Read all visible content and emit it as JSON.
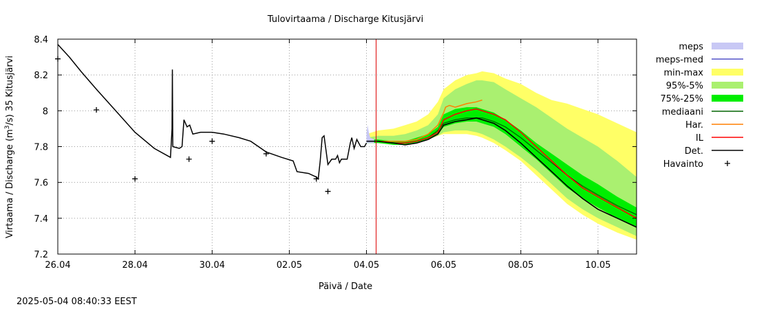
{
  "timestamp": "2025-05-04 08:40:33 EEST",
  "chart_data": {
    "type": "line",
    "title": "Tulovirtaama / Discharge  Kitusjärvi",
    "xlabel": "Päivä / Date",
    "ylabel_main": "Virtaama / Discharge (m",
    "ylabel_sup": "3",
    "ylabel_tail": "/s)  35 Kitusjärvi",
    "ylim": [
      7.2,
      8.4
    ],
    "yticks": [
      7.2,
      7.4,
      7.6,
      7.8,
      8.0,
      8.2,
      8.4
    ],
    "ytick_labels": [
      "7.2",
      "7.4",
      "7.6",
      "7.8",
      "8",
      "8.2",
      "8.4"
    ],
    "xlim_days": [
      0,
      15
    ],
    "xticks": [
      {
        "day": 0,
        "label": "26.04"
      },
      {
        "day": 2,
        "label": "28.04"
      },
      {
        "day": 4,
        "label": "30.04"
      },
      {
        "day": 6,
        "label": "02.05"
      },
      {
        "day": 8,
        "label": "04.05"
      },
      {
        "day": 10,
        "label": "06.05"
      },
      {
        "day": 12,
        "label": "08.05"
      },
      {
        "day": 14,
        "label": "10.05"
      }
    ],
    "grid": true,
    "legend_position": "right",
    "current_time_day": 8.25,
    "colors": {
      "meps": "#c8c8f5",
      "meps_med": "#5050c8",
      "min_max": "#ffff66",
      "p95_5": "#aaf070",
      "p75_25": "#00ee00",
      "mediaani": "#006400",
      "har": "#ff7f00",
      "il": "#ff0000",
      "det": "#000000",
      "havainto": "#000000",
      "now_line": "#dd0000"
    },
    "legend": [
      {
        "key": "meps",
        "label": "meps",
        "kind": "band"
      },
      {
        "key": "meps_med",
        "label": "meps-med",
        "kind": "line"
      },
      {
        "key": "min_max",
        "label": "min-max",
        "kind": "band"
      },
      {
        "key": "p95_5",
        "label": "95%-5%",
        "kind": "band"
      },
      {
        "key": "p75_25",
        "label": "75%-25%",
        "kind": "band"
      },
      {
        "key": "mediaani",
        "label": "mediaani",
        "kind": "line"
      },
      {
        "key": "har",
        "label": "Har.",
        "kind": "line"
      },
      {
        "key": "il",
        "label": "IL",
        "kind": "line"
      },
      {
        "key": "det",
        "label": "Det.",
        "kind": "line"
      },
      {
        "key": "havainto",
        "label": "Havainto",
        "kind": "marker"
      }
    ],
    "observations": [
      [
        0.0,
        8.29
      ],
      [
        1.0,
        8.005
      ],
      [
        2.0,
        7.62
      ],
      [
        3.4,
        7.73
      ],
      [
        4.0,
        7.83
      ],
      [
        5.4,
        7.76
      ],
      [
        6.7,
        7.62
      ],
      [
        7.0,
        7.55
      ]
    ],
    "det_history": [
      [
        0.0,
        8.37
      ],
      [
        0.3,
        8.3
      ],
      [
        0.6,
        8.22
      ],
      [
        1.0,
        8.12
      ],
      [
        1.5,
        8.0
      ],
      [
        2.0,
        7.88
      ],
      [
        2.5,
        7.79
      ],
      [
        2.92,
        7.74
      ],
      [
        2.96,
        7.9
      ],
      [
        2.97,
        8.23
      ],
      [
        2.98,
        7.8
      ],
      [
        3.15,
        7.79
      ],
      [
        3.22,
        7.8
      ],
      [
        3.27,
        7.95
      ],
      [
        3.35,
        7.91
      ],
      [
        3.42,
        7.92
      ],
      [
        3.5,
        7.87
      ],
      [
        3.7,
        7.88
      ],
      [
        4.0,
        7.88
      ],
      [
        4.3,
        7.87
      ],
      [
        4.7,
        7.85
      ],
      [
        5.0,
        7.83
      ],
      [
        5.4,
        7.77
      ],
      [
        5.8,
        7.74
      ],
      [
        6.1,
        7.72
      ],
      [
        6.2,
        7.66
      ],
      [
        6.5,
        7.65
      ],
      [
        6.7,
        7.63
      ],
      [
        6.75,
        7.62
      ],
      [
        6.8,
        7.72
      ],
      [
        6.85,
        7.85
      ],
      [
        6.9,
        7.86
      ],
      [
        6.95,
        7.78
      ],
      [
        7.0,
        7.7
      ],
      [
        7.1,
        7.73
      ],
      [
        7.2,
        7.73
      ],
      [
        7.25,
        7.75
      ],
      [
        7.3,
        7.71
      ],
      [
        7.35,
        7.73
      ],
      [
        7.5,
        7.73
      ],
      [
        7.58,
        7.82
      ],
      [
        7.62,
        7.85
      ],
      [
        7.68,
        7.79
      ],
      [
        7.75,
        7.84
      ],
      [
        7.85,
        7.8
      ],
      [
        7.95,
        7.8
      ],
      [
        8.0,
        7.82
      ]
    ],
    "forecast_x": [
      8.0,
      8.3,
      8.7,
      9.0,
      9.3,
      9.6,
      9.85,
      10.0,
      10.3,
      10.6,
      10.85,
      11.0,
      11.3,
      11.6,
      12.0,
      12.4,
      12.8,
      13.2,
      13.6,
      14.0,
      14.5,
      15.0
    ],
    "band_min_max": {
      "lower": [
        7.82,
        7.82,
        7.81,
        7.81,
        7.82,
        7.84,
        7.86,
        7.87,
        7.87,
        7.87,
        7.86,
        7.85,
        7.82,
        7.78,
        7.72,
        7.64,
        7.56,
        7.48,
        7.42,
        7.37,
        7.32,
        7.28
      ],
      "upper": [
        7.87,
        7.89,
        7.9,
        7.92,
        7.94,
        7.98,
        8.05,
        8.12,
        8.17,
        8.2,
        8.21,
        8.22,
        8.21,
        8.18,
        8.15,
        8.1,
        8.06,
        8.04,
        8.01,
        7.98,
        7.93,
        7.88
      ]
    },
    "band_95_5": {
      "lower": [
        7.82,
        7.82,
        7.81,
        7.81,
        7.82,
        7.84,
        7.86,
        7.88,
        7.89,
        7.89,
        7.88,
        7.87,
        7.84,
        7.8,
        7.74,
        7.67,
        7.59,
        7.51,
        7.45,
        7.4,
        7.35,
        7.3
      ],
      "upper": [
        7.85,
        7.86,
        7.86,
        7.87,
        7.89,
        7.92,
        7.98,
        8.07,
        8.12,
        8.15,
        8.17,
        8.17,
        8.16,
        8.12,
        8.07,
        8.02,
        7.96,
        7.9,
        7.85,
        7.8,
        7.72,
        7.63
      ]
    },
    "band_75_25": {
      "lower": [
        7.82,
        7.82,
        7.81,
        7.81,
        7.82,
        7.84,
        7.87,
        7.91,
        7.93,
        7.94,
        7.94,
        7.93,
        7.91,
        7.87,
        7.8,
        7.73,
        7.65,
        7.57,
        7.51,
        7.46,
        7.4,
        7.35
      ],
      "upper": [
        7.84,
        7.84,
        7.83,
        7.83,
        7.85,
        7.87,
        7.91,
        7.98,
        8.01,
        8.02,
        8.02,
        8.01,
        7.99,
        7.95,
        7.89,
        7.82,
        7.76,
        7.7,
        7.64,
        7.59,
        7.52,
        7.46
      ]
    },
    "band_meps": {
      "x": [
        8.0,
        8.03,
        8.06,
        8.1,
        8.2
      ],
      "lower": [
        7.82,
        7.82,
        7.82,
        7.82,
        7.82
      ],
      "upper": [
        7.87,
        7.92,
        7.88,
        7.85,
        7.84
      ]
    },
    "line_mediaani": [
      7.83,
      7.83,
      7.82,
      7.82,
      7.83,
      7.85,
      7.89,
      7.93,
      7.95,
      7.96,
      7.96,
      7.96,
      7.94,
      7.91,
      7.85,
      7.78,
      7.71,
      7.64,
      7.58,
      7.53,
      7.47,
      7.42
    ],
    "line_il": [
      7.83,
      7.83,
      7.82,
      7.82,
      7.83,
      7.85,
      7.88,
      7.95,
      7.98,
      8.0,
      8.01,
      8.0,
      7.98,
      7.95,
      7.88,
      7.8,
      7.72,
      7.64,
      7.57,
      7.52,
      7.46,
      7.4
    ],
    "line_det": [
      7.83,
      7.83,
      7.82,
      7.81,
      7.82,
      7.84,
      7.87,
      7.92,
      7.94,
      7.95,
      7.96,
      7.95,
      7.93,
      7.89,
      7.82,
      7.74,
      7.66,
      7.58,
      7.51,
      7.45,
      7.4,
      7.35
    ],
    "line_har": {
      "x": [
        8.0,
        8.3,
        8.7,
        9.0,
        9.3,
        9.6,
        9.85,
        10.0,
        10.05,
        10.15,
        10.3,
        10.6,
        10.85,
        11.0
      ],
      "y": [
        7.83,
        7.83,
        7.83,
        7.83,
        7.84,
        7.87,
        7.92,
        7.99,
        8.02,
        8.03,
        8.02,
        8.04,
        8.05,
        8.06
      ]
    }
  }
}
